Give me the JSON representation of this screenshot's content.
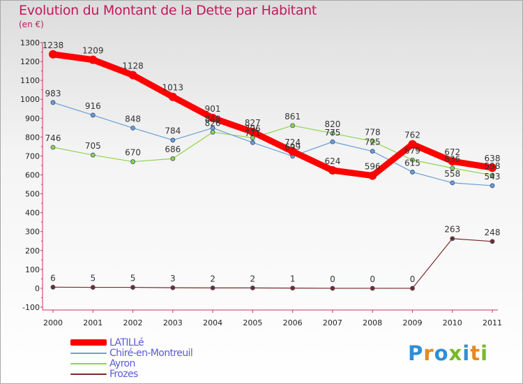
{
  "header": {
    "title": "Evolution du Montant de la Dette par Habitant",
    "subtitle": "(en €)"
  },
  "brand": {
    "text": "Proxiti",
    "letter_colors": [
      "#2e8fd6",
      "#e58a1f",
      "#2e8fd6",
      "#78b82a",
      "#2e8fd6",
      "#e58a1f",
      "#78b82a"
    ]
  },
  "chart_data": {
    "type": "line",
    "title": "Evolution du Montant de la Dette par Habitant",
    "subtitle": "(en €)",
    "xlabel": "",
    "ylabel": "",
    "x": [
      "2000",
      "2001",
      "2002",
      "2003",
      "2004",
      "2005",
      "2006",
      "2007",
      "2008",
      "2009",
      "2010",
      "2011"
    ],
    "ylim": [
      -100,
      1300
    ],
    "yticks": [
      -100,
      0,
      100,
      200,
      300,
      400,
      500,
      600,
      700,
      800,
      900,
      1000,
      1100,
      1200,
      1300
    ],
    "grid": false,
    "legend": "bottom-left",
    "series": [
      {
        "name": "LATILLé",
        "color": "#ff0000",
        "values": [
          1238,
          1209,
          1128,
          1013,
          901,
          827,
          724,
          624,
          596,
          762,
          672,
          638
        ],
        "labels": [
          "1238",
          "1209",
          "1128",
          "1013",
          "901",
          "827",
          "724",
          "624",
          "596",
          "762",
          "672",
          "638"
        ]
      },
      {
        "name": "Chiré-en-Montreuil",
        "color": "#6a9fd4",
        "values": [
          983,
          916,
          848,
          784,
          848,
          771,
          699,
          775,
          725,
          615,
          558,
          543
        ],
        "labels": [
          "983",
          "916",
          "848",
          "784",
          "848",
          "771",
          "699",
          "775",
          "725",
          "615",
          "558",
          "543"
        ]
      },
      {
        "name": "Ayron",
        "color": "#8fd44a",
        "values": [
          746,
          705,
          670,
          686,
          826,
          796,
          861,
          820,
          778,
          679,
          636,
          598
        ],
        "labels": [
          "746",
          "705",
          "670",
          "686",
          "826",
          "796",
          "861",
          "820",
          "778",
          "679",
          "636",
          "598"
        ]
      },
      {
        "name": "Frozes",
        "color": "#7a2828",
        "values": [
          6,
          5,
          5,
          3,
          2,
          2,
          1,
          0,
          0,
          0,
          263,
          248
        ],
        "labels": [
          "6",
          "5",
          "5",
          "3",
          "2",
          "2",
          "1",
          "0",
          "0",
          "0",
          "263",
          "248"
        ]
      }
    ]
  }
}
